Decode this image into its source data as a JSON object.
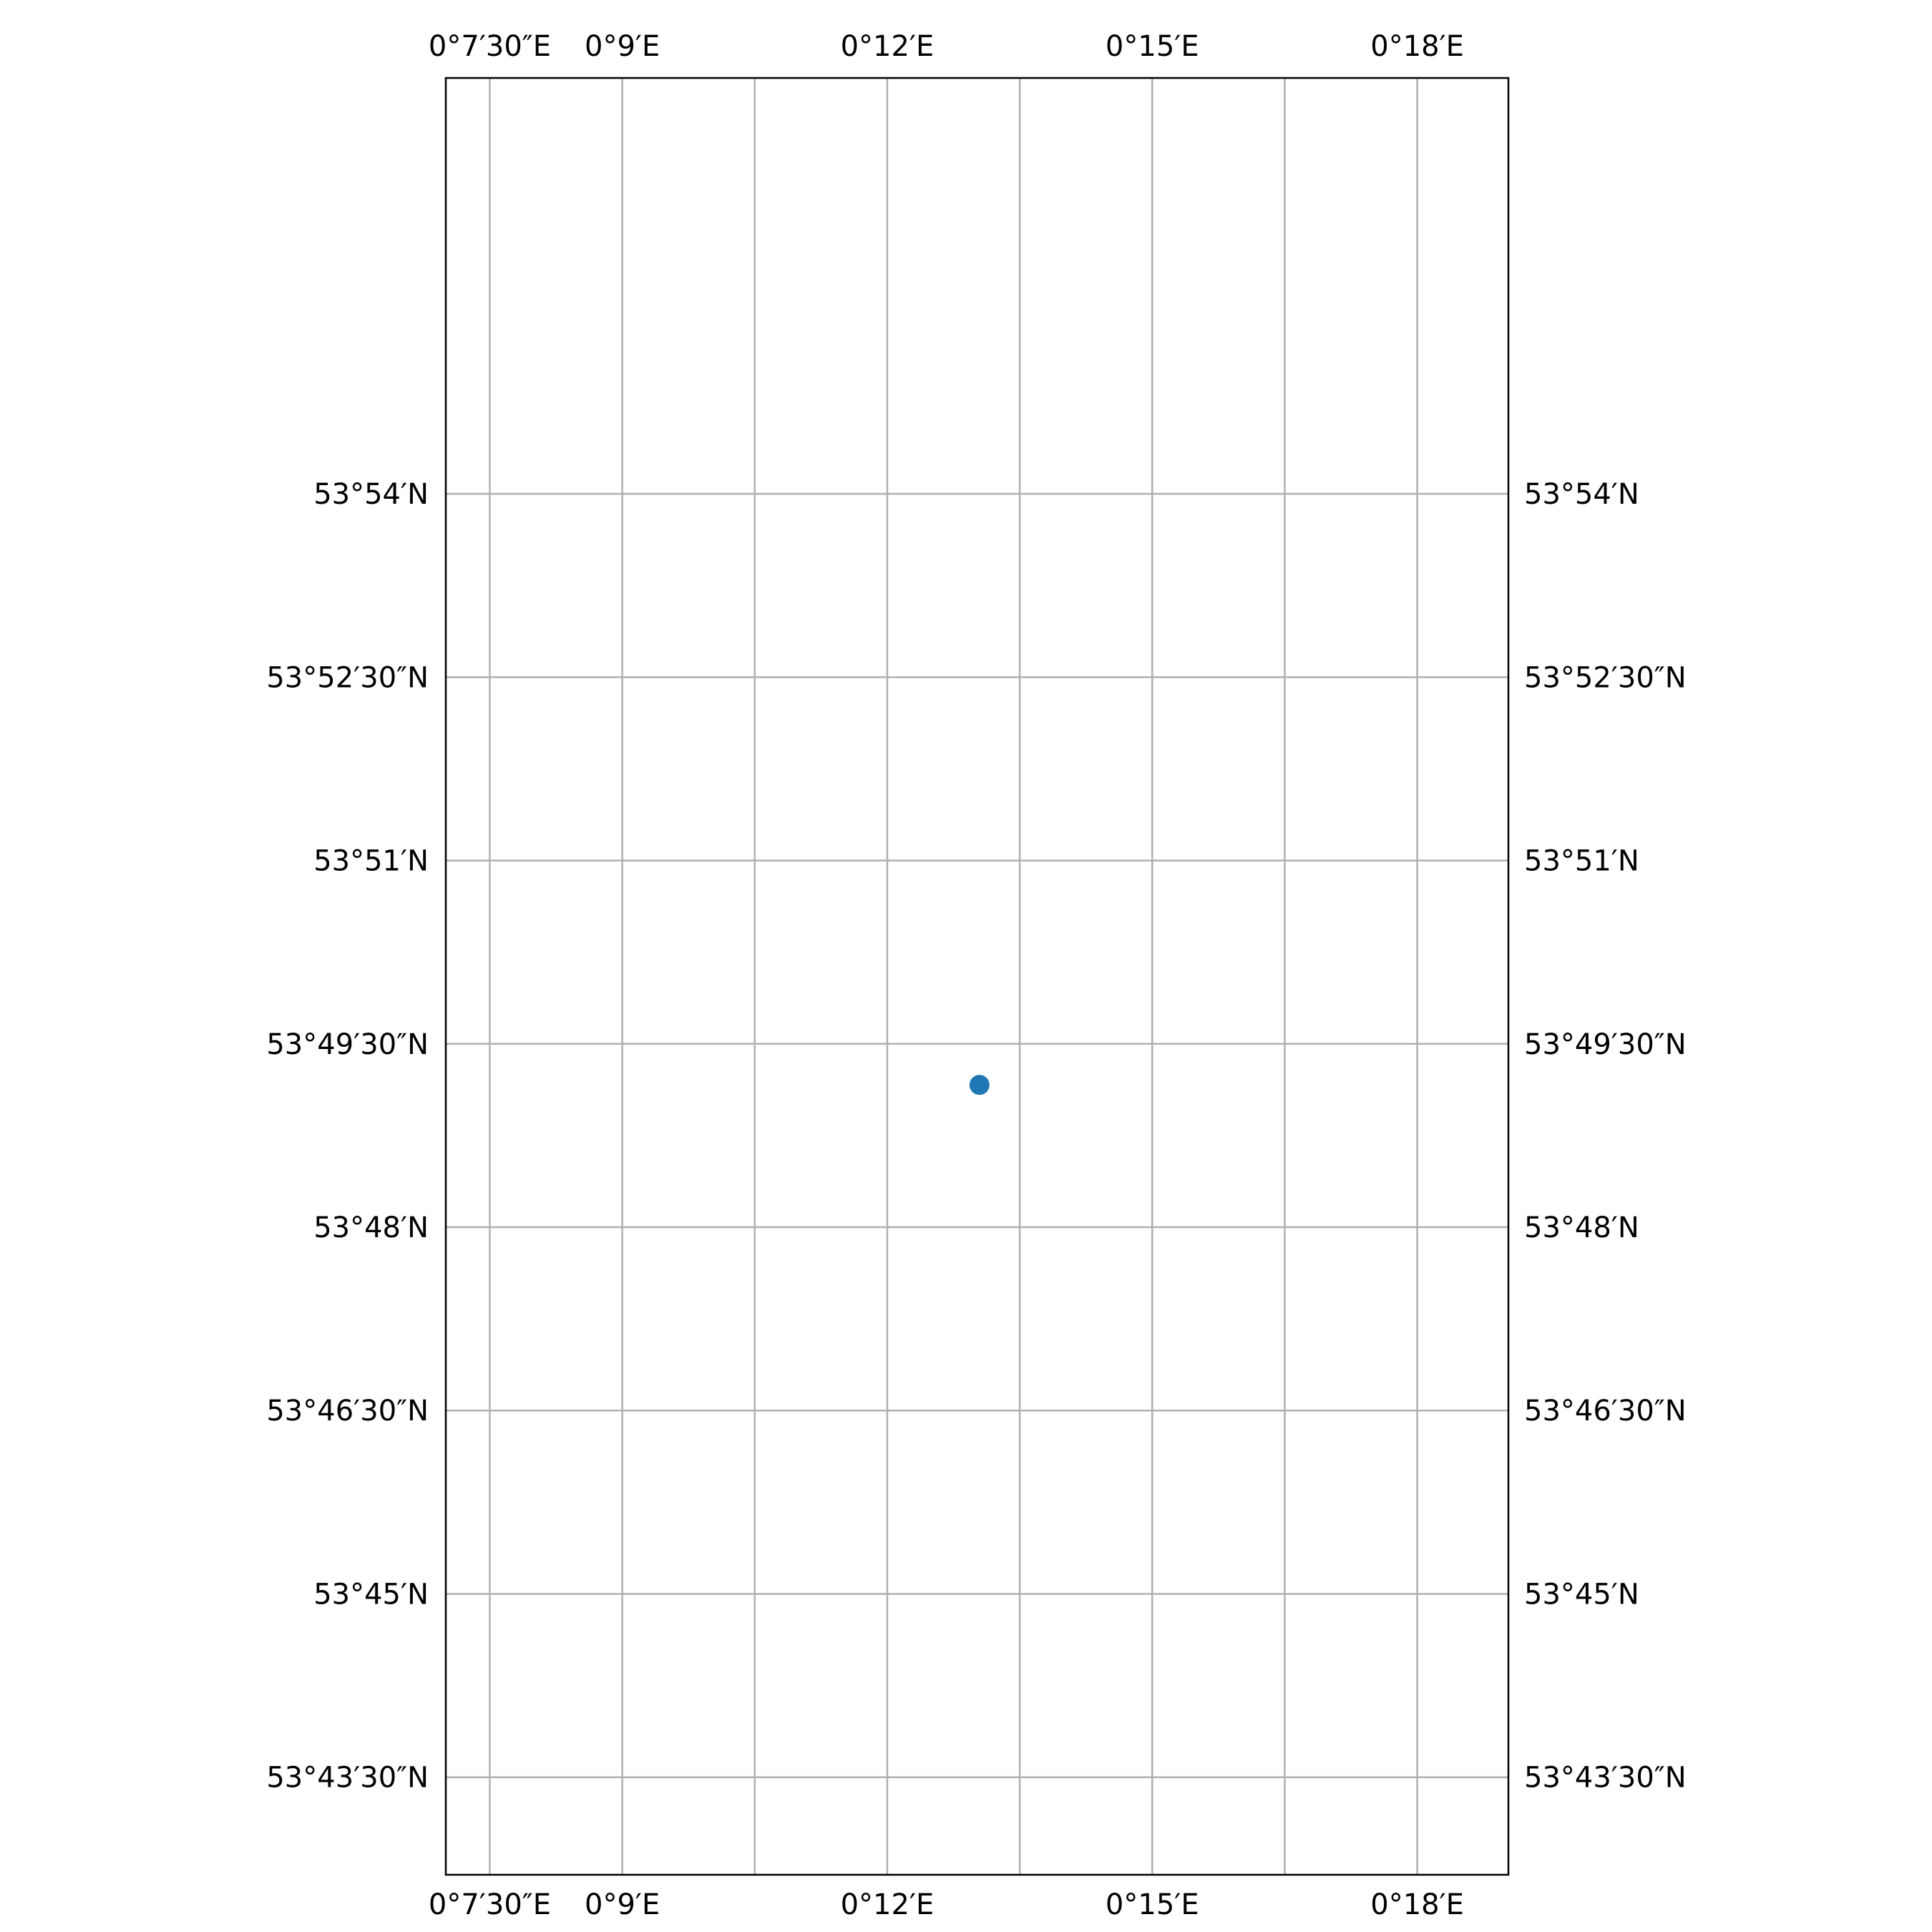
{
  "map": {
    "frame_color": "#000000",
    "grid_color": "#b0b0b0",
    "lon_range": [
      0.1167,
      0.3172
    ],
    "lat_range": [
      53.7117,
      53.9567
    ],
    "lon_gridlines": [
      0.125,
      0.15,
      0.175,
      0.2,
      0.225,
      0.25,
      0.275,
      0.3
    ],
    "lat_gridlines": [
      53.725,
      53.75,
      53.775,
      53.8,
      53.825,
      53.85,
      53.875,
      53.9
    ],
    "lon_labels": [
      {
        "value": 0.125,
        "text": "0°7′30″E"
      },
      {
        "value": 0.15,
        "text": "0°9′E"
      },
      {
        "value": 0.2,
        "text": "0°12′E"
      },
      {
        "value": 0.25,
        "text": "0°15′E"
      },
      {
        "value": 0.3,
        "text": "0°18′E"
      }
    ],
    "lat_labels": [
      {
        "value": 53.9,
        "text": "53°54′N"
      },
      {
        "value": 53.875,
        "text": "53°52′30″N"
      },
      {
        "value": 53.85,
        "text": "53°51′N"
      },
      {
        "value": 53.825,
        "text": "53°49′30″N"
      },
      {
        "value": 53.8,
        "text": "53°48′N"
      },
      {
        "value": 53.775,
        "text": "53°46′30″N"
      },
      {
        "value": 53.75,
        "text": "53°45′N"
      },
      {
        "value": 53.725,
        "text": "53°43′30″N"
      }
    ],
    "points": [
      {
        "lon": 0.2174,
        "lat": 53.8194,
        "color": "#1f77b4"
      }
    ]
  }
}
